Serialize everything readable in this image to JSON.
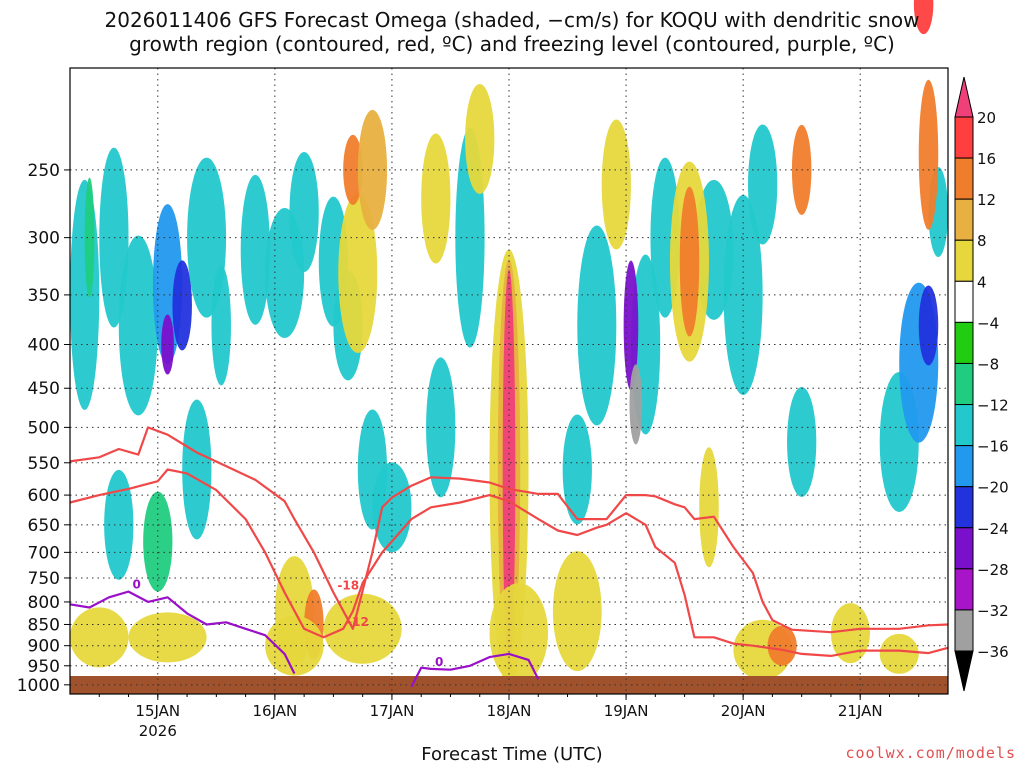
{
  "title_line1": "2026011406 GFS Forecast Omega (shaded, −cm/s) for KOQU with dendritic snow",
  "title_line2": "growth region (contoured, red, ºC) and freezing level (contoured, purple, ºC)",
  "xlabel": "Forecast Time (UTC)",
  "credit": "coolwx.com/models",
  "chart_data": {
    "type": "heatmap",
    "y_axis": {
      "ticks": [
        250,
        300,
        350,
        400,
        450,
        500,
        550,
        600,
        650,
        700,
        750,
        800,
        850,
        900,
        950,
        1000
      ],
      "range": [
        1025,
        190
      ],
      "scale": "log-pressure"
    },
    "x_axis": {
      "ticks": [
        {
          "label": "15JAN",
          "sublabel": "2026",
          "hour": 18
        },
        {
          "label": "16JAN",
          "sublabel": "",
          "hour": 42
        },
        {
          "label": "17JAN",
          "sublabel": "",
          "hour": 66
        },
        {
          "label": "18JAN",
          "sublabel": "",
          "hour": 90
        },
        {
          "label": "19JAN",
          "sublabel": "",
          "hour": 114
        },
        {
          "label": "20JAN",
          "sublabel": "",
          "hour": 138
        },
        {
          "label": "21JAN",
          "sublabel": "",
          "hour": 162
        }
      ],
      "range_hours": [
        0,
        180
      ],
      "grid": true
    },
    "colorbar": {
      "levels": [
        20,
        16,
        12,
        8,
        4,
        -4,
        -8,
        -12,
        -16,
        -20,
        -24,
        -28,
        -32,
        -36
      ],
      "colors": [
        "#f0407a",
        "#ff3f3f",
        "#f07d2c",
        "#e8b040",
        "#e6d83c",
        "#ffffff",
        "#22cc11",
        "#20cc80",
        "#22c8cc",
        "#2299ee",
        "#2233dd",
        "#7a10cc",
        "#a814c8",
        "#a0a0a0",
        "#000000"
      ]
    },
    "contours": [
      {
        "name": "dendritic snow growth -12",
        "color": "#f04848",
        "label": "-12",
        "points": [
          [
            0,
            612
          ],
          [
            6,
            600
          ],
          [
            12,
            590
          ],
          [
            18,
            578
          ],
          [
            20,
            560
          ],
          [
            24,
            566
          ],
          [
            30,
            592
          ],
          [
            36,
            640
          ],
          [
            40,
            700
          ],
          [
            44,
            780
          ],
          [
            48,
            860
          ],
          [
            52,
            880
          ],
          [
            56,
            860
          ],
          [
            58,
            820
          ],
          [
            60,
            760
          ],
          [
            64,
            700
          ],
          [
            70,
            640
          ],
          [
            74,
            620
          ],
          [
            80,
            612
          ],
          [
            86,
            600
          ],
          [
            90,
            610
          ],
          [
            96,
            640
          ],
          [
            100,
            660
          ],
          [
            104,
            668
          ],
          [
            108,
            655
          ],
          [
            110,
            650
          ],
          [
            114,
            630
          ],
          [
            118,
            650
          ],
          [
            120,
            690
          ],
          [
            124,
            720
          ],
          [
            126,
            785
          ],
          [
            128,
            880
          ],
          [
            132,
            880
          ],
          [
            136,
            895
          ],
          [
            140,
            900
          ],
          [
            146,
            910
          ],
          [
            150,
            920
          ],
          [
            156,
            925
          ],
          [
            162,
            912
          ],
          [
            170,
            912
          ],
          [
            176,
            918
          ],
          [
            180,
            905
          ]
        ]
      },
      {
        "name": "dendritic snow growth -18",
        "color": "#f04848",
        "label": "-18",
        "points": [
          [
            0,
            548
          ],
          [
            6,
            542
          ],
          [
            10,
            530
          ],
          [
            14,
            538
          ],
          [
            16,
            500
          ],
          [
            20,
            510
          ],
          [
            26,
            535
          ],
          [
            32,
            555
          ],
          [
            38,
            576
          ],
          [
            44,
            610
          ],
          [
            46,
            640
          ],
          [
            50,
            700
          ],
          [
            54,
            780
          ],
          [
            58,
            860
          ],
          [
            62,
            700
          ],
          [
            64,
            620
          ],
          [
            66,
            604
          ],
          [
            70,
            585
          ],
          [
            74,
            572
          ],
          [
            80,
            574
          ],
          [
            86,
            580
          ],
          [
            90,
            590
          ],
          [
            96,
            598
          ],
          [
            100,
            598
          ],
          [
            104,
            640
          ],
          [
            110,
            640
          ],
          [
            114,
            600
          ],
          [
            118,
            600
          ],
          [
            120,
            602
          ],
          [
            124,
            615
          ],
          [
            126,
            620
          ],
          [
            128,
            640
          ],
          [
            132,
            636
          ],
          [
            136,
            690
          ],
          [
            140,
            740
          ],
          [
            142,
            800
          ],
          [
            144,
            840
          ],
          [
            148,
            862
          ],
          [
            156,
            868
          ],
          [
            162,
            860
          ],
          [
            170,
            860
          ],
          [
            176,
            852
          ],
          [
            180,
            850
          ]
        ]
      },
      {
        "name": "freezing level 0",
        "color": "#9a10c8",
        "label": "0",
        "points": [
          [
            0,
            805
          ],
          [
            4,
            812
          ],
          [
            8,
            790
          ],
          [
            12,
            778
          ],
          [
            16,
            800
          ],
          [
            20,
            790
          ],
          [
            24,
            825
          ],
          [
            28,
            850
          ],
          [
            32,
            845
          ],
          [
            36,
            860
          ],
          [
            40,
            875
          ],
          [
            44,
            920
          ],
          [
            46,
            970
          ]
        ]
      },
      {
        "name": "freezing level 0 (2)",
        "color": "#9a10c8",
        "label": "0",
        "points": [
          [
            70,
            1005
          ],
          [
            72,
            955
          ],
          [
            74,
            958
          ],
          [
            78,
            960
          ],
          [
            82,
            950
          ],
          [
            86,
            928
          ],
          [
            90,
            920
          ],
          [
            94,
            935
          ],
          [
            96,
            985
          ]
        ]
      }
    ]
  }
}
